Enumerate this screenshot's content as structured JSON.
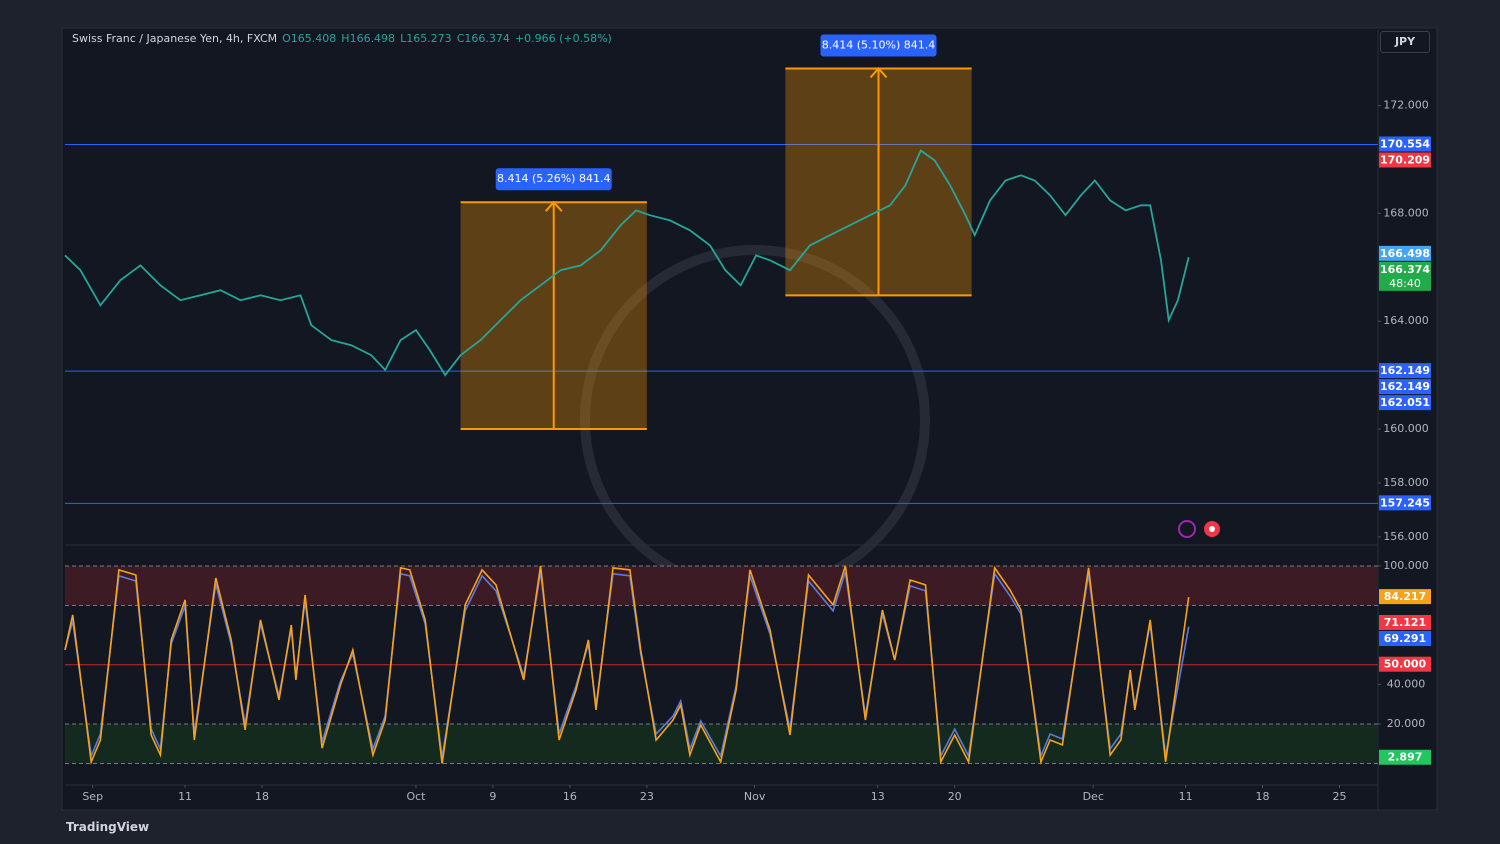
{
  "header": {
    "symbol": "Swiss Franc / Japanese Yen, 4h, FXCM",
    "ohlc": [
      "O165.408",
      "H166.498",
      "L165.273",
      "C166.374",
      "+0.966 (+0.58%)"
    ]
  },
  "currency_button": "JPY",
  "brand": "TradingView",
  "chart_data": [
    {
      "type": "line",
      "x": [
        -1.8,
        -0.8,
        0.5,
        1.8,
        3.1,
        4.4,
        5.7,
        7.0,
        8.3,
        9.6,
        10.9,
        12.2,
        13.5,
        14.2,
        15.5,
        16.8,
        18.1,
        19.0,
        20.0,
        21.0,
        21.9,
        22.9,
        23.9,
        25.2,
        26.5,
        27.8,
        29.1,
        30.4,
        31.7,
        33.0,
        34.3,
        35.3,
        36.2,
        37.5,
        38.8,
        40.1,
        41.1,
        42.1,
        43.1,
        44.0,
        45.3,
        46.6,
        47.9,
        49.2,
        50.5,
        51.8,
        52.8,
        53.8,
        54.7,
        55.7,
        56.7,
        57.3,
        58.3,
        59.3,
        60.3,
        61.2,
        62.2,
        63.2,
        64.2,
        65.1,
        66.1,
        67.1,
        68.1,
        68.7,
        69.4,
        69.9,
        70.5,
        71.2
      ],
      "series": [
        {
          "color": "#26a69a",
          "values": [
            166.44,
            165.89,
            164.59,
            165.52,
            166.07,
            165.33,
            164.78,
            164.96,
            165.15,
            164.78,
            164.96,
            164.78,
            164.96,
            163.85,
            163.3,
            163.11,
            162.74,
            162.19,
            163.3,
            163.67,
            162.93,
            162.0,
            162.74,
            163.3,
            164.04,
            164.78,
            165.33,
            165.89,
            166.07,
            166.63,
            167.56,
            168.11,
            167.93,
            167.74,
            167.37,
            166.81,
            165.89,
            165.33,
            166.44,
            166.26,
            165.89,
            166.81,
            167.19,
            167.56,
            167.93,
            168.3,
            169.04,
            170.33,
            169.96,
            169.04,
            167.93,
            167.19,
            168.48,
            169.22,
            169.41,
            169.22,
            168.67,
            167.93,
            168.67,
            169.22,
            168.48,
            168.11,
            168.3,
            168.3,
            166.26,
            164.04,
            164.78,
            166.374
          ]
        }
      ],
      "xlim": [
        -1.8,
        83.5
      ],
      "ylim": [
        155.7,
        174.8
      ],
      "yticks": [
        {
          "value": 156,
          "label": "156.000"
        },
        {
          "value": 158,
          "label": "158.000"
        },
        {
          "value": 160,
          "label": "160.000"
        },
        {
          "value": 164,
          "label": "164.000"
        },
        {
          "value": 168,
          "label": "168.000"
        },
        {
          "value": 172,
          "label": "172.000"
        }
      ],
      "hlines": [
        {
          "value": 170.554,
          "color": "#2962ff"
        },
        {
          "value": 162.149,
          "color": "#2962ff"
        },
        {
          "value": 157.245,
          "color": "#2962ff"
        }
      ],
      "measures": [
        {
          "label": "8.414 (5.26%) 841.4",
          "x": [
            23.9,
            36.0
          ],
          "y": [
            160.0,
            168.414
          ]
        },
        {
          "label": "8.414 (5.10%) 841.4",
          "x": [
            45.0,
            57.1
          ],
          "y": [
            164.96,
            173.374
          ]
        }
      ],
      "price_labels": [
        {
          "value": 170.554,
          "color": "#2962ff"
        },
        {
          "value": 170.209,
          "color": "#f23645"
        },
        {
          "value": 166.498,
          "color": "#42a5f5"
        },
        {
          "value": 166.374,
          "color": "#22ab4a",
          "countdown": "48:40"
        },
        {
          "value": 162.149,
          "color": "#2962ff"
        },
        {
          "value": 162.149,
          "color": "#2962ff"
        },
        {
          "value": 162.051,
          "color": "#2962ff"
        },
        {
          "value": 157.245,
          "color": "#2962ff"
        }
      ]
    },
    {
      "type": "line",
      "x": [
        -1.8,
        -1.3,
        -0.1,
        0.5,
        1.7,
        2.8,
        3.8,
        4.4,
        5.1,
        6.0,
        6.6,
        8.0,
        9.0,
        9.9,
        10.9,
        12.1,
        12.9,
        13.2,
        13.8,
        14.9,
        16.1,
        16.9,
        18.2,
        19.0,
        20.0,
        20.6,
        21.6,
        22.7,
        24.2,
        25.3,
        26.2,
        28.0,
        29.1,
        30.3,
        31.4,
        32.2,
        32.7,
        33.8,
        34.9,
        35.6,
        36.6,
        37.7,
        38.2,
        38.8,
        39.5,
        40.8,
        41.8,
        42.7,
        44.0,
        45.3,
        46.5,
        47.3,
        48.1,
        48.9,
        50.2,
        51.3,
        52.1,
        53.1,
        54.1,
        55.1,
        56.0,
        56.9,
        58.6,
        59.6,
        60.3,
        61.6,
        62.2,
        63.0,
        64.7,
        66.1,
        66.8,
        67.4,
        67.7,
        68.7,
        69.7,
        71.2
      ],
      "series": [
        {
          "color": "#5b7be0",
          "values": [
            57.5,
            72.2,
            3.8,
            14.9,
            95.0,
            92.4,
            17.4,
            7.3,
            60.5,
            79.8,
            14.9,
            90.9,
            60.5,
            20.0,
            70.7,
            34.2,
            68.1,
            44.3,
            82.3,
            10.8,
            41.7,
            55.5,
            7.3,
            24.0,
            96.0,
            95.0,
            70.7,
            3.0,
            77.3,
            95.0,
            87.4,
            44.3,
            97.0,
            14.9,
            39.2,
            60.5,
            29.1,
            96.0,
            95.0,
            55.5,
            14.9,
            24.0,
            31.6,
            7.3,
            21.5,
            3.8,
            39.2,
            95.0,
            65.6,
            17.4,
            92.4,
            84.8,
            77.3,
            97.0,
            24.0,
            75.7,
            52.4,
            89.9,
            87.4,
            3.8,
            17.4,
            3.8,
            96.0,
            84.8,
            75.7,
            3.8,
            14.9,
            12.4,
            96.0,
            7.3,
            14.9,
            45.3,
            29.1,
            70.7,
            3.8,
            69.291
          ]
        },
        {
          "color": "#f7a21b",
          "values": [
            57.5,
            75.2,
            0.8,
            11.9,
            98.0,
            95.4,
            14.4,
            4.3,
            62.5,
            82.8,
            11.9,
            93.9,
            62.5,
            17.0,
            72.7,
            32.2,
            70.1,
            42.3,
            85.3,
            7.8,
            39.7,
            57.5,
            4.3,
            22.0,
            99.0,
            98.0,
            72.7,
            0.0,
            80.3,
            98.0,
            90.4,
            42.3,
            100.0,
            11.9,
            37.2,
            62.5,
            27.1,
            99.0,
            98.0,
            57.5,
            11.9,
            22.0,
            29.6,
            4.3,
            19.5,
            0.8,
            37.2,
            98.0,
            67.6,
            14.4,
            95.4,
            87.8,
            80.3,
            100.0,
            22.0,
            77.7,
            52.4,
            92.9,
            90.4,
            0.8,
            14.4,
            0.8,
            99.0,
            87.8,
            77.7,
            0.8,
            11.9,
            9.4,
            99.0,
            4.3,
            11.9,
            47.3,
            27.1,
            72.7,
            0.8,
            84.217
          ]
        }
      ],
      "xlim": [
        -1.8,
        83.5
      ],
      "xticks": [
        {
          "value": 0,
          "label": "Sep"
        },
        {
          "value": 6,
          "label": "11"
        },
        {
          "value": 11,
          "label": "18"
        },
        {
          "value": 21,
          "label": "Oct"
        },
        {
          "value": 26,
          "label": "9"
        },
        {
          "value": 31,
          "label": "16"
        },
        {
          "value": 36,
          "label": "23"
        },
        {
          "value": 43,
          "label": "Nov"
        },
        {
          "value": 51,
          "label": "13"
        },
        {
          "value": 56,
          "label": "20"
        },
        {
          "value": 65,
          "label": "Dec"
        },
        {
          "value": 71,
          "label": "11"
        },
        {
          "value": 76,
          "label": "18"
        },
        {
          "value": 81,
          "label": "25"
        }
      ],
      "ylim": [
        -10.9,
        110.6
      ],
      "yticks": [
        {
          "value": 20,
          "label": "20.000"
        },
        {
          "value": 40,
          "label": "40.000"
        },
        {
          "value": 100,
          "label": "100.000"
        }
      ],
      "zones": [
        {
          "from": 80,
          "to": 100,
          "color": "#3d1b25"
        },
        {
          "from": 0,
          "to": 20,
          "color": "#142a1e"
        }
      ],
      "levels": [
        0,
        20,
        80,
        100
      ],
      "midline": {
        "value": 50,
        "color": "#c62828"
      },
      "price_labels": [
        {
          "value": 84.217,
          "color": "#f7a21b"
        },
        {
          "value": 71.121,
          "color": "#f23645"
        },
        {
          "value": 69.291,
          "color": "#2962ff"
        },
        {
          "value": 50,
          "label": "50.000",
          "color": "#f23645"
        },
        {
          "value": 2.897,
          "color": "#22c55e"
        }
      ]
    }
  ]
}
